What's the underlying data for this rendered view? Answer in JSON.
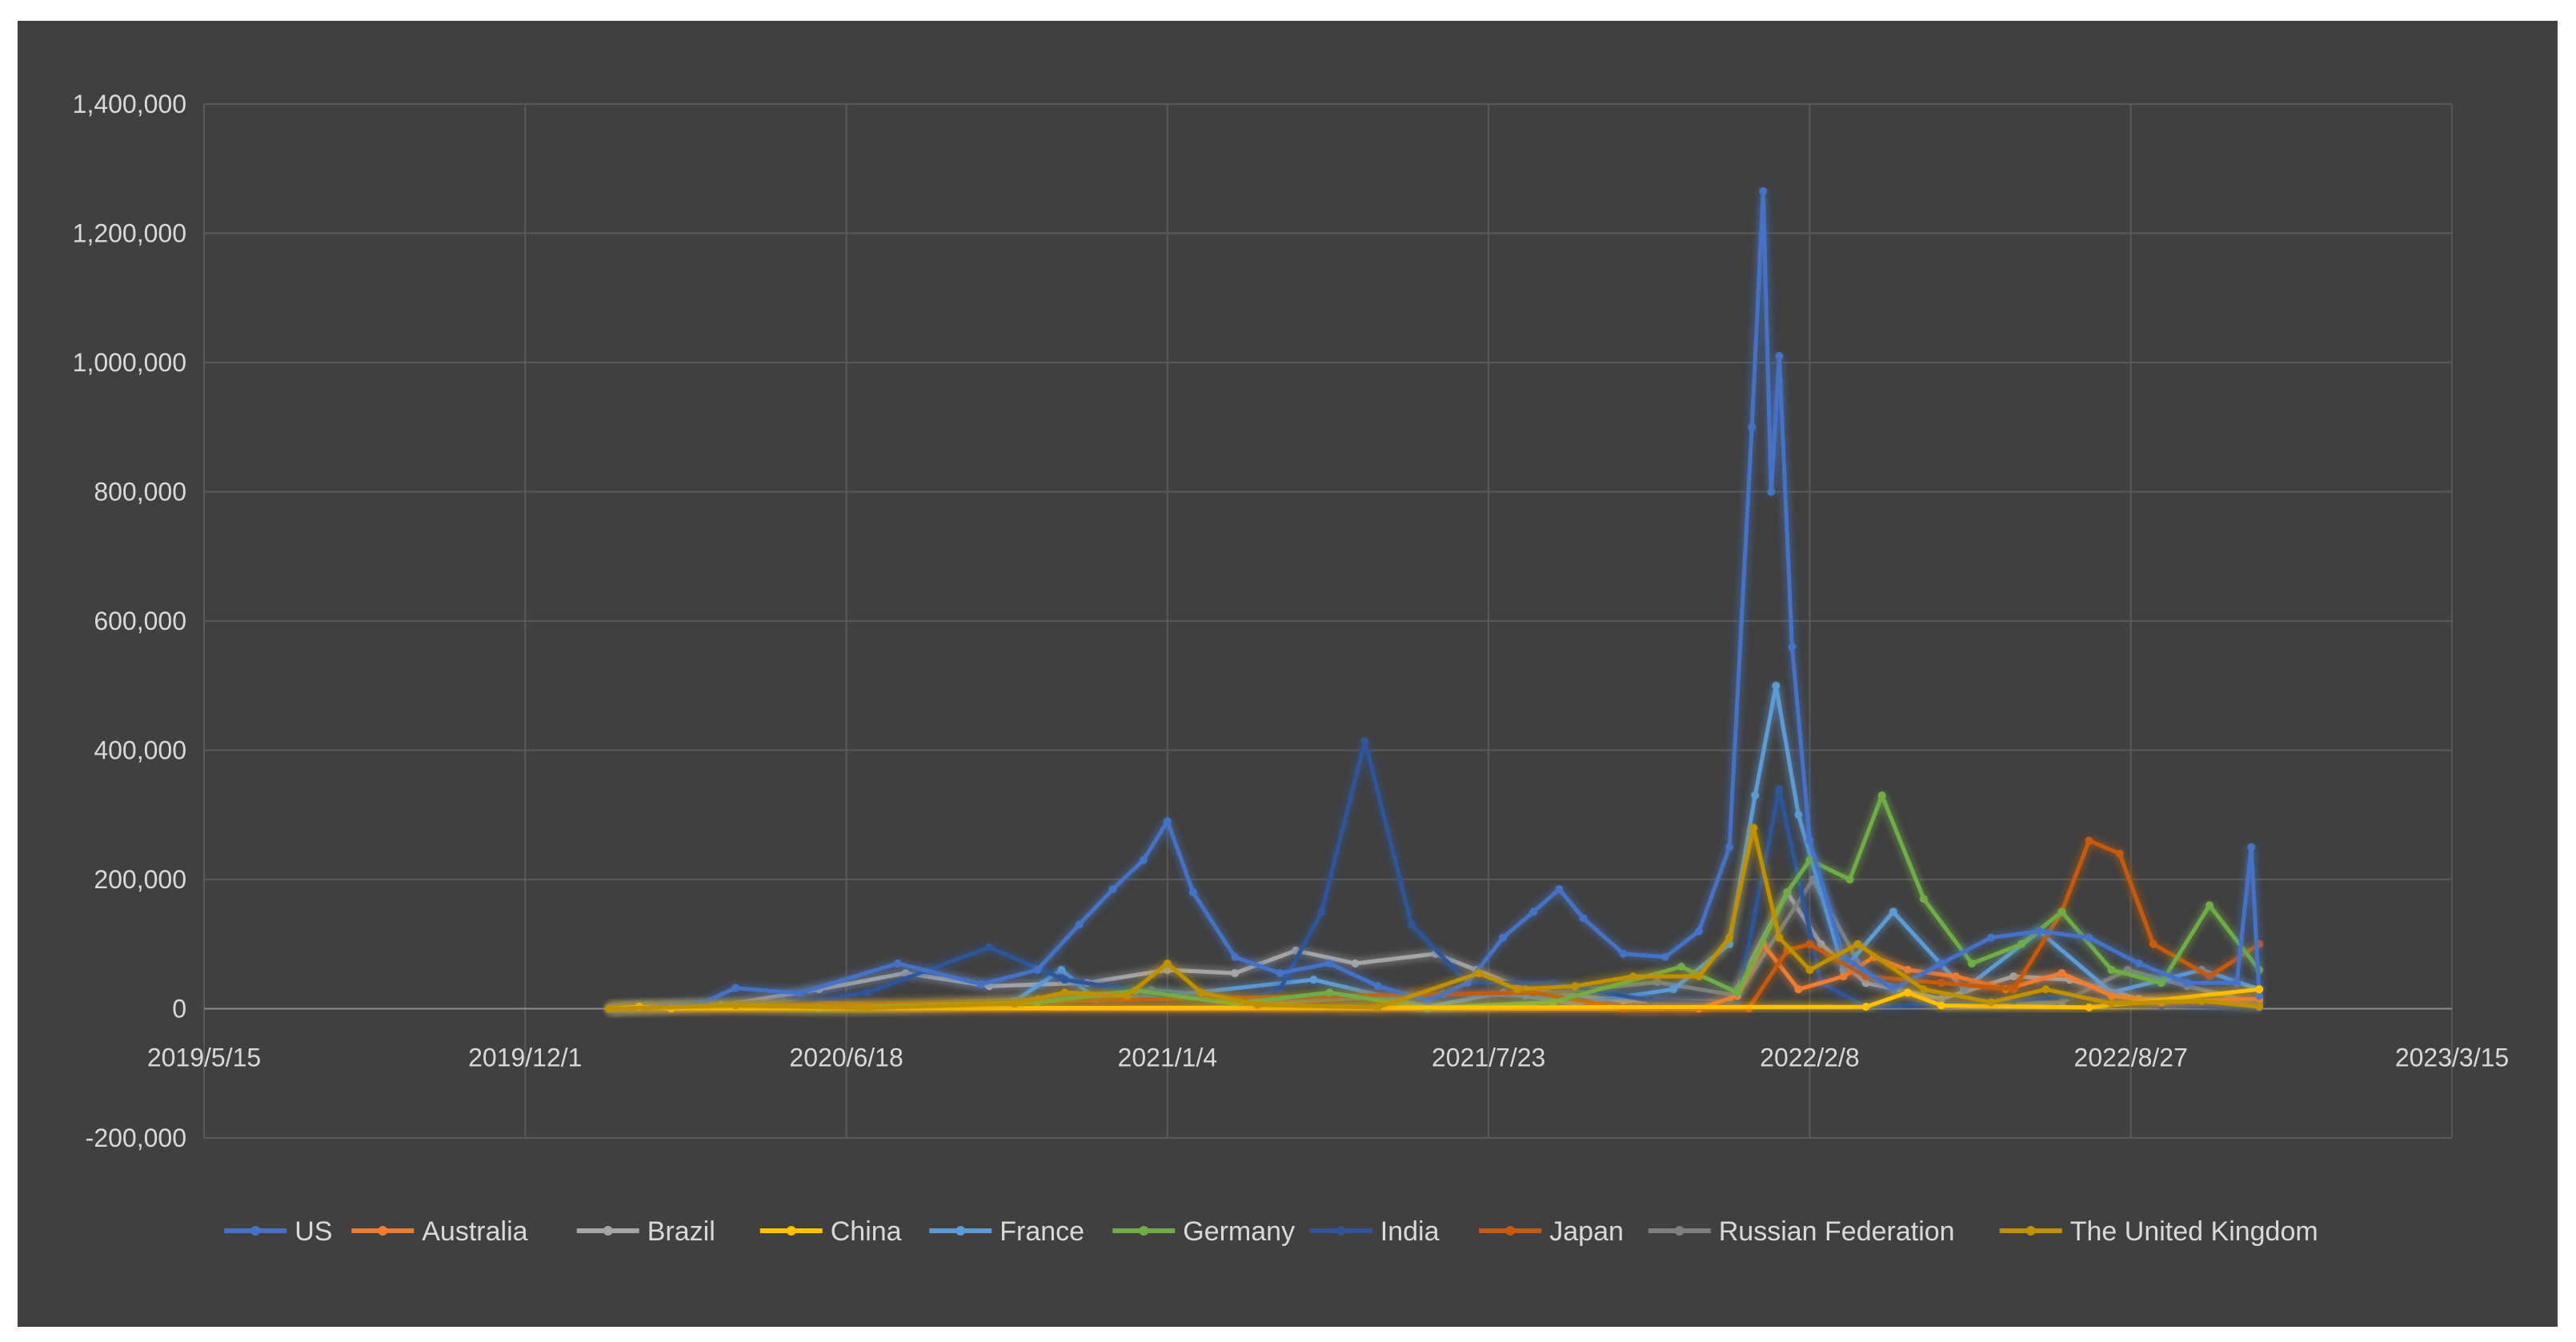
{
  "chart_data": {
    "type": "line",
    "title": "",
    "xlabel": "",
    "ylabel": "",
    "ylim": [
      -200000,
      1400000
    ],
    "yticks": [
      -200000,
      0,
      200000,
      400000,
      600000,
      800000,
      1000000,
      1200000,
      1400000
    ],
    "ytick_labels": [
      "-200,000",
      "0",
      "200,000",
      "400,000",
      "600,000",
      "800,000",
      "1,000,000",
      "1,200,000",
      "1,400,000"
    ],
    "xlim": [
      "2019-05-15",
      "2023-03-15"
    ],
    "xticks": [
      "2019-05-15",
      "2019-12-01",
      "2020-06-18",
      "2021-01-04",
      "2021-07-23",
      "2022-02-08",
      "2022-08-27",
      "2023-03-15"
    ],
    "xtick_labels": [
      "2019/5/15",
      "2019/12/1",
      "2020/6/18",
      "2021/1/4",
      "2021/7/23",
      "2022/2/8",
      "2022/8/27",
      "2023/3/15"
    ],
    "grid": true,
    "legend_position": "bottom",
    "series": [
      {
        "name": "US",
        "color": "#4472c4",
        "points": [
          [
            "2020-01-22",
            0
          ],
          [
            "2020-03-20",
            8000
          ],
          [
            "2020-04-10",
            32000
          ],
          [
            "2020-05-20",
            24000
          ],
          [
            "2020-07-20",
            70000
          ],
          [
            "2020-09-10",
            38000
          ],
          [
            "2020-10-15",
            60000
          ],
          [
            "2020-11-10",
            130000
          ],
          [
            "2020-12-01",
            185000
          ],
          [
            "2020-12-20",
            230000
          ],
          [
            "2021-01-04",
            290000
          ],
          [
            "2021-01-20",
            180000
          ],
          [
            "2021-02-15",
            80000
          ],
          [
            "2021-03-15",
            55000
          ],
          [
            "2021-04-15",
            70000
          ],
          [
            "2021-05-15",
            35000
          ],
          [
            "2021-06-15",
            12000
          ],
          [
            "2021-07-10",
            40000
          ],
          [
            "2021-08-01",
            110000
          ],
          [
            "2021-08-20",
            150000
          ],
          [
            "2021-09-05",
            185000
          ],
          [
            "2021-09-20",
            140000
          ],
          [
            "2021-10-15",
            85000
          ],
          [
            "2021-11-10",
            80000
          ],
          [
            "2021-12-01",
            120000
          ],
          [
            "2021-12-20",
            250000
          ],
          [
            "2022-01-03",
            900000
          ],
          [
            "2022-01-10",
            1265000
          ],
          [
            "2022-01-15",
            800000
          ],
          [
            "2022-01-20",
            1010000
          ],
          [
            "2022-01-28",
            560000
          ],
          [
            "2022-02-08",
            260000
          ],
          [
            "2022-03-01",
            80000
          ],
          [
            "2022-04-01",
            30000
          ],
          [
            "2022-05-01",
            70000
          ],
          [
            "2022-06-01",
            110000
          ],
          [
            "2022-07-01",
            120000
          ],
          [
            "2022-08-01",
            110000
          ],
          [
            "2022-09-01",
            70000
          ],
          [
            "2022-10-01",
            40000
          ],
          [
            "2022-11-01",
            40000
          ],
          [
            "2022-11-10",
            250000
          ],
          [
            "2022-11-15",
            20000
          ]
        ]
      },
      {
        "name": "Australia",
        "color": "#ed7d31",
        "points": [
          [
            "2020-01-22",
            0
          ],
          [
            "2021-12-01",
            0
          ],
          [
            "2021-12-25",
            20000
          ],
          [
            "2022-01-10",
            100000
          ],
          [
            "2022-02-01",
            30000
          ],
          [
            "2022-03-01",
            50000
          ],
          [
            "2022-03-20",
            80000
          ],
          [
            "2022-04-10",
            60000
          ],
          [
            "2022-05-10",
            50000
          ],
          [
            "2022-06-10",
            30000
          ],
          [
            "2022-07-15",
            55000
          ],
          [
            "2022-08-15",
            20000
          ],
          [
            "2022-09-15",
            10000
          ],
          [
            "2022-11-15",
            15000
          ]
        ]
      },
      {
        "name": "Brazil",
        "color": "#a5a5a5",
        "points": [
          [
            "2020-01-22",
            0
          ],
          [
            "2020-04-01",
            5000
          ],
          [
            "2020-06-01",
            30000
          ],
          [
            "2020-07-25",
            55000
          ],
          [
            "2020-09-15",
            35000
          ],
          [
            "2020-11-15",
            40000
          ],
          [
            "2021-01-04",
            60000
          ],
          [
            "2021-02-15",
            55000
          ],
          [
            "2021-03-25",
            90000
          ],
          [
            "2021-05-01",
            70000
          ],
          [
            "2021-06-20",
            85000
          ],
          [
            "2021-07-15",
            60000
          ],
          [
            "2021-08-15",
            30000
          ],
          [
            "2021-10-15",
            12000
          ],
          [
            "2021-12-20",
            10000
          ],
          [
            "2022-01-25",
            180000
          ],
          [
            "2022-02-15",
            100000
          ],
          [
            "2022-03-15",
            40000
          ],
          [
            "2022-05-01",
            15000
          ],
          [
            "2022-06-15",
            50000
          ],
          [
            "2022-07-20",
            45000
          ],
          [
            "2022-09-01",
            15000
          ],
          [
            "2022-11-15",
            10000
          ]
        ]
      },
      {
        "name": "China",
        "color": "#ffc000",
        "points": [
          [
            "2020-01-22",
            0
          ],
          [
            "2020-02-10",
            3000
          ],
          [
            "2020-03-01",
            200
          ],
          [
            "2022-03-15",
            3000
          ],
          [
            "2022-04-10",
            25000
          ],
          [
            "2022-05-01",
            5000
          ],
          [
            "2022-08-01",
            2000
          ],
          [
            "2022-11-15",
            30000
          ]
        ]
      },
      {
        "name": "France",
        "color": "#5b9bd5",
        "points": [
          [
            "2020-01-22",
            0
          ],
          [
            "2020-03-25",
            4000
          ],
          [
            "2020-06-01",
            500
          ],
          [
            "2020-08-01",
            2000
          ],
          [
            "2020-10-01",
            12000
          ],
          [
            "2020-10-30",
            60000
          ],
          [
            "2020-11-20",
            15000
          ],
          [
            "2021-01-04",
            20000
          ],
          [
            "2021-04-05",
            45000
          ],
          [
            "2021-06-15",
            3000
          ],
          [
            "2021-08-01",
            25000
          ],
          [
            "2021-09-15",
            8000
          ],
          [
            "2021-11-15",
            30000
          ],
          [
            "2021-12-20",
            100000
          ],
          [
            "2022-01-05",
            330000
          ],
          [
            "2022-01-18",
            500000
          ],
          [
            "2022-02-01",
            300000
          ],
          [
            "2022-03-01",
            60000
          ],
          [
            "2022-04-01",
            150000
          ],
          [
            "2022-05-15",
            30000
          ],
          [
            "2022-07-01",
            120000
          ],
          [
            "2022-08-15",
            25000
          ],
          [
            "2022-10-10",
            60000
          ],
          [
            "2022-11-15",
            30000
          ]
        ]
      },
      {
        "name": "Germany",
        "color": "#70ad47",
        "points": [
          [
            "2020-01-22",
            0
          ],
          [
            "2020-04-01",
            6000
          ],
          [
            "2020-06-01",
            500
          ],
          [
            "2020-10-15",
            10000
          ],
          [
            "2020-12-15",
            28000
          ],
          [
            "2021-02-15",
            8000
          ],
          [
            "2021-04-15",
            25000
          ],
          [
            "2021-06-15",
            1000
          ],
          [
            "2021-09-01",
            10000
          ],
          [
            "2021-11-20",
            65000
          ],
          [
            "2021-12-25",
            25000
          ],
          [
            "2022-01-25",
            180000
          ],
          [
            "2022-02-08",
            230000
          ],
          [
            "2022-03-05",
            200000
          ],
          [
            "2022-03-25",
            330000
          ],
          [
            "2022-04-20",
            170000
          ],
          [
            "2022-05-20",
            70000
          ],
          [
            "2022-06-20",
            100000
          ],
          [
            "2022-07-15",
            150000
          ],
          [
            "2022-08-15",
            60000
          ],
          [
            "2022-09-15",
            40000
          ],
          [
            "2022-10-15",
            160000
          ],
          [
            "2022-11-15",
            60000
          ]
        ]
      },
      {
        "name": "India",
        "color": "#2f5597",
        "points": [
          [
            "2020-01-22",
            0
          ],
          [
            "2020-05-01",
            3000
          ],
          [
            "2020-07-01",
            25000
          ],
          [
            "2020-09-15",
            95000
          ],
          [
            "2020-11-01",
            45000
          ],
          [
            "2021-01-04",
            20000
          ],
          [
            "2021-02-15",
            12000
          ],
          [
            "2021-03-15",
            30000
          ],
          [
            "2021-04-10",
            150000
          ],
          [
            "2021-05-07",
            414000
          ],
          [
            "2021-06-05",
            130000
          ],
          [
            "2021-07-10",
            40000
          ],
          [
            "2021-09-01",
            40000
          ],
          [
            "2021-11-01",
            12000
          ],
          [
            "2021-12-25",
            8000
          ],
          [
            "2022-01-20",
            340000
          ],
          [
            "2022-02-15",
            40000
          ],
          [
            "2022-03-15",
            3000
          ],
          [
            "2022-06-15",
            12000
          ],
          [
            "2022-07-20",
            20000
          ],
          [
            "2022-09-15",
            5000
          ],
          [
            "2022-11-15",
            1000
          ]
        ]
      },
      {
        "name": "Japan",
        "color": "#c55a11",
        "points": [
          [
            "2020-01-22",
            0
          ],
          [
            "2021-08-20",
            25000
          ],
          [
            "2021-10-15",
            500
          ],
          [
            "2022-01-01",
            500
          ],
          [
            "2022-01-25",
            90000
          ],
          [
            "2022-02-08",
            100000
          ],
          [
            "2022-03-15",
            50000
          ],
          [
            "2022-05-01",
            40000
          ],
          [
            "2022-06-15",
            30000
          ],
          [
            "2022-07-15",
            150000
          ],
          [
            "2022-08-01",
            260000
          ],
          [
            "2022-08-20",
            240000
          ],
          [
            "2022-09-10",
            100000
          ],
          [
            "2022-10-15",
            50000
          ],
          [
            "2022-11-15",
            100000
          ]
        ]
      },
      {
        "name": "Russian Federation",
        "color": "#7f7f7f",
        "points": [
          [
            "2020-01-22",
            0
          ],
          [
            "2020-05-10",
            11000
          ],
          [
            "2020-07-15",
            6000
          ],
          [
            "2020-10-15",
            15000
          ],
          [
            "2020-12-25",
            29000
          ],
          [
            "2021-03-15",
            10000
          ],
          [
            "2021-06-25",
            23000
          ],
          [
            "2021-08-15",
            20000
          ],
          [
            "2021-11-05",
            41000
          ],
          [
            "2021-12-25",
            20000
          ],
          [
            "2022-02-10",
            200000
          ],
          [
            "2022-03-15",
            50000
          ],
          [
            "2022-05-01",
            5000
          ],
          [
            "2022-07-15",
            10000
          ],
          [
            "2022-08-25",
            60000
          ],
          [
            "2022-10-01",
            35000
          ],
          [
            "2022-11-15",
            8000
          ]
        ]
      },
      {
        "name": "The United Kingdom",
        "color": "#bf9000",
        "points": [
          [
            "2020-01-22",
            0
          ],
          [
            "2020-04-10",
            5000
          ],
          [
            "2020-07-01",
            1000
          ],
          [
            "2020-10-01",
            8000
          ],
          [
            "2020-11-01",
            25000
          ],
          [
            "2020-12-10",
            20000
          ],
          [
            "2021-01-04",
            70000
          ],
          [
            "2021-01-25",
            25000
          ],
          [
            "2021-03-01",
            6000
          ],
          [
            "2021-05-15",
            2000
          ],
          [
            "2021-07-17",
            55000
          ],
          [
            "2021-08-10",
            30000
          ],
          [
            "2021-09-15",
            35000
          ],
          [
            "2021-10-21",
            50000
          ],
          [
            "2021-12-01",
            50000
          ],
          [
            "2021-12-20",
            110000
          ],
          [
            "2022-01-04",
            280000
          ],
          [
            "2022-01-20",
            110000
          ],
          [
            "2022-02-08",
            60000
          ],
          [
            "2022-03-10",
            100000
          ],
          [
            "2022-04-20",
            30000
          ],
          [
            "2022-06-01",
            10000
          ],
          [
            "2022-07-05",
            30000
          ],
          [
            "2022-08-15",
            8000
          ],
          [
            "2022-10-10",
            12000
          ],
          [
            "2022-11-15",
            3000
          ]
        ]
      }
    ]
  }
}
